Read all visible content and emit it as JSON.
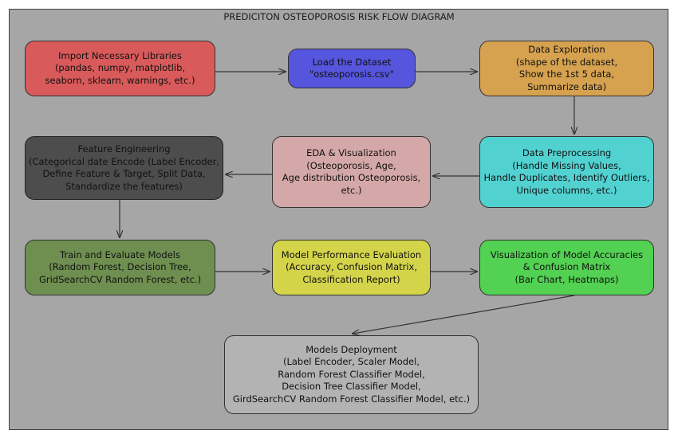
{
  "title": "PREDICITON OSTEOPOROSIS RISK FLOW DIAGRAM",
  "colors": {
    "frame": "#a6a6a6",
    "arrow": "#333333"
  },
  "nodes": {
    "import": {
      "lines": [
        "Import Necessary Libraries",
        "(pandas, numpy, matplotlib,",
        "seaborn, sklearn, warnings, etc.)"
      ],
      "color": "#d85a5a"
    },
    "load": {
      "lines": [
        "Load the Dataset",
        "\"osteoporosis.csv\""
      ],
      "color": "#5555dd"
    },
    "exploration": {
      "lines": [
        "Data Exploration",
        "(shape of the dataset,",
        "Show the 1st 5 data,",
        "Summarize data)"
      ],
      "color": "#d6a24f"
    },
    "feature": {
      "lines": [
        "Feature Engineering",
        "(Categorical date Encode (Label Encoder,",
        "Define Feature & Target, Split Data,",
        "Standardize the features)"
      ],
      "color": "#4d4d4d"
    },
    "eda": {
      "lines": [
        "EDA & Visualization",
        "(Osteoporosis,  Age,",
        "Age distribution Osteoporosis,",
        "etc.)"
      ],
      "color": "#d4a8a8"
    },
    "preprocessing": {
      "lines": [
        "Data Preprocessing",
        "(Handle Missing Values,",
        "Handle Duplicates, Identify Outliers,",
        "Unique columns, etc.)"
      ],
      "color": "#52d1d1"
    },
    "train": {
      "lines": [
        "Train and Evaluate Models",
        "(Random Forest, Decision Tree,",
        "GridSearchCV Random Forest, etc.)"
      ],
      "color": "#6e8f50"
    },
    "performance": {
      "lines": [
        "Model Performance Evaluation",
        "(Accuracy, Confusion Matrix,",
        "Classification Report)"
      ],
      "color": "#d4d44a"
    },
    "visualization": {
      "lines": [
        "Visualization of Model Accuracies",
        "& Confusion Matrix",
        "(Bar Chart, Heatmaps)"
      ],
      "color": "#52d152"
    },
    "deployment": {
      "lines": [
        "Models Deployment",
        "(Label Encoder, Scaler Model,",
        "Random Forest Classifier Model,",
        "Decision Tree Classifier Model,",
        "GirdSearchCV Random Forest Classifier Model, etc.)"
      ],
      "color": "#b3b3b3"
    }
  },
  "edges": [
    {
      "from": "import",
      "to": "load"
    },
    {
      "from": "load",
      "to": "exploration"
    },
    {
      "from": "exploration",
      "to": "preprocessing"
    },
    {
      "from": "preprocessing",
      "to": "eda"
    },
    {
      "from": "eda",
      "to": "feature"
    },
    {
      "from": "feature",
      "to": "train"
    },
    {
      "from": "train",
      "to": "performance"
    },
    {
      "from": "performance",
      "to": "visualization"
    },
    {
      "from": "visualization",
      "to": "deployment"
    }
  ]
}
